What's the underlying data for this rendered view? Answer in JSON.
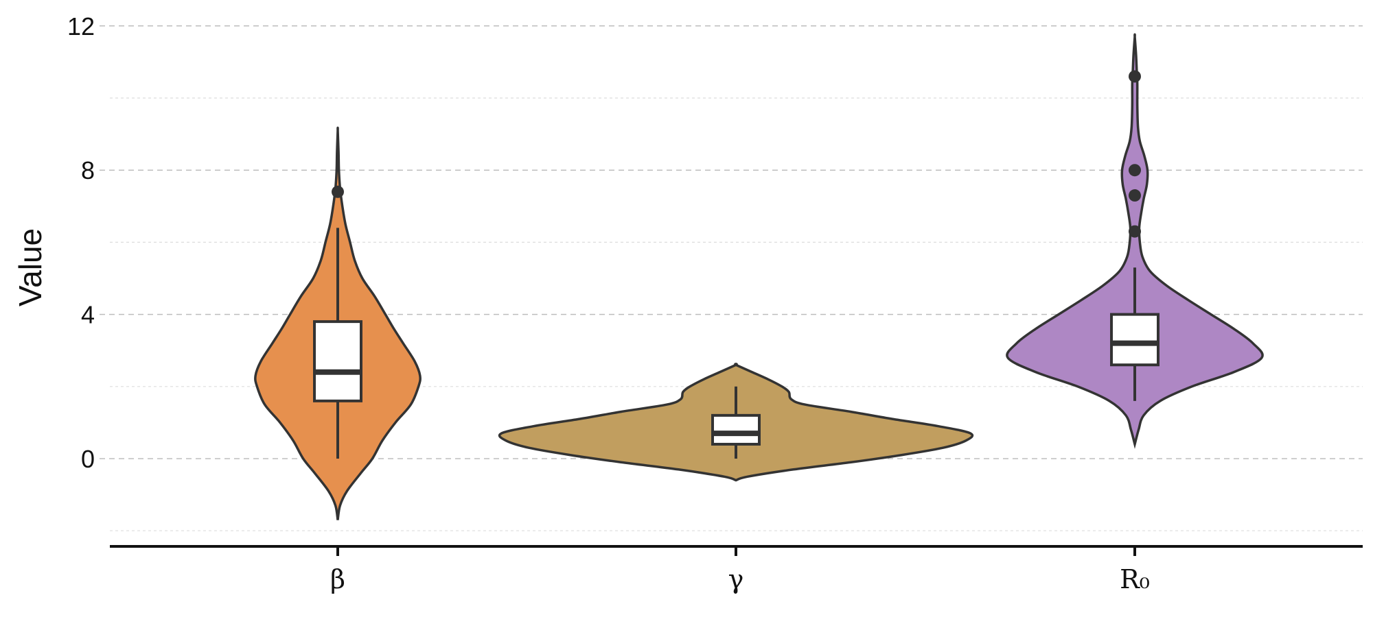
{
  "chart_data": {
    "type": "violin",
    "title": "",
    "xlabel": "",
    "ylabel": "Value",
    "ylim": [
      -2.5,
      12.3
    ],
    "yticks": [
      0,
      4,
      8,
      12
    ],
    "minor_yticks": [
      -2,
      2,
      6,
      10
    ],
    "grid": true,
    "categories": [
      {
        "label": "β",
        "color": "#E6904E",
        "box": {
          "whisker_low": 0.0,
          "q1": 1.6,
          "median": 2.4,
          "q3": 3.8,
          "whisker_high": 6.4
        },
        "outliers": [
          7.4
        ],
        "range": [
          -1.7,
          9.1
        ],
        "density": [
          [
            -1.7,
            0.0
          ],
          [
            -1.3,
            0.03
          ],
          [
            -0.9,
            0.12
          ],
          [
            -0.4,
            0.3
          ],
          [
            0.0,
            0.45
          ],
          [
            0.5,
            0.58
          ],
          [
            1.0,
            0.75
          ],
          [
            1.5,
            0.95
          ],
          [
            2.0,
            1.05
          ],
          [
            2.3,
            1.07
          ],
          [
            2.7,
            1.0
          ],
          [
            3.2,
            0.85
          ],
          [
            3.6,
            0.73
          ],
          [
            4.0,
            0.62
          ],
          [
            4.5,
            0.48
          ],
          [
            5.0,
            0.32
          ],
          [
            5.5,
            0.22
          ],
          [
            6.0,
            0.16
          ],
          [
            6.5,
            0.1
          ],
          [
            7.0,
            0.06
          ],
          [
            7.5,
            0.03
          ],
          [
            8.0,
            0.015
          ],
          [
            8.5,
            0.01
          ],
          [
            9.1,
            0.0
          ]
        ]
      },
      {
        "label": "γ",
        "color": "#C19E5F",
        "box": {
          "whisker_low": 0.0,
          "q1": 0.4,
          "median": 0.7,
          "q3": 1.2,
          "whisker_high": 2.0
        },
        "outliers": [],
        "range": [
          -0.6,
          2.6
        ],
        "density": [
          [
            -0.6,
            0.0
          ],
          [
            -0.5,
            0.05
          ],
          [
            -0.3,
            0.25
          ],
          [
            -0.1,
            0.5
          ],
          [
            0.1,
            0.72
          ],
          [
            0.3,
            0.9
          ],
          [
            0.5,
            1.0
          ],
          [
            0.7,
            1.02
          ],
          [
            0.9,
            0.88
          ],
          [
            1.1,
            0.68
          ],
          [
            1.3,
            0.5
          ],
          [
            1.5,
            0.3
          ],
          [
            1.65,
            0.24
          ],
          [
            1.85,
            0.23
          ],
          [
            2.0,
            0.2
          ],
          [
            2.2,
            0.14
          ],
          [
            2.4,
            0.07
          ],
          [
            2.6,
            0.0
          ]
        ]
      },
      {
        "label": "R₀",
        "color": "#AE87C4",
        "box": {
          "whisker_low": 1.6,
          "q1": 2.6,
          "median": 3.2,
          "q3": 4.0,
          "whisker_high": 5.3
        },
        "outliers": [
          6.3,
          7.3,
          8.0,
          10.6
        ],
        "range": [
          0.4,
          11.7
        ],
        "density": [
          [
            0.4,
            0.0
          ],
          [
            0.8,
            0.03
          ],
          [
            1.2,
            0.07
          ],
          [
            1.6,
            0.2
          ],
          [
            2.0,
            0.45
          ],
          [
            2.4,
            0.78
          ],
          [
            2.8,
            1.0
          ],
          [
            3.2,
            0.93
          ],
          [
            3.6,
            0.78
          ],
          [
            4.0,
            0.6
          ],
          [
            4.4,
            0.42
          ],
          [
            4.8,
            0.25
          ],
          [
            5.2,
            0.12
          ],
          [
            5.6,
            0.06
          ],
          [
            6.0,
            0.04
          ],
          [
            6.4,
            0.035
          ],
          [
            6.8,
            0.05
          ],
          [
            7.2,
            0.07
          ],
          [
            7.6,
            0.095
          ],
          [
            8.0,
            0.1
          ],
          [
            8.4,
            0.075
          ],
          [
            8.8,
            0.04
          ],
          [
            9.2,
            0.025
          ],
          [
            9.8,
            0.02
          ],
          [
            10.4,
            0.02
          ],
          [
            10.8,
            0.015
          ],
          [
            11.2,
            0.01
          ],
          [
            11.7,
            0.0
          ]
        ]
      }
    ]
  }
}
